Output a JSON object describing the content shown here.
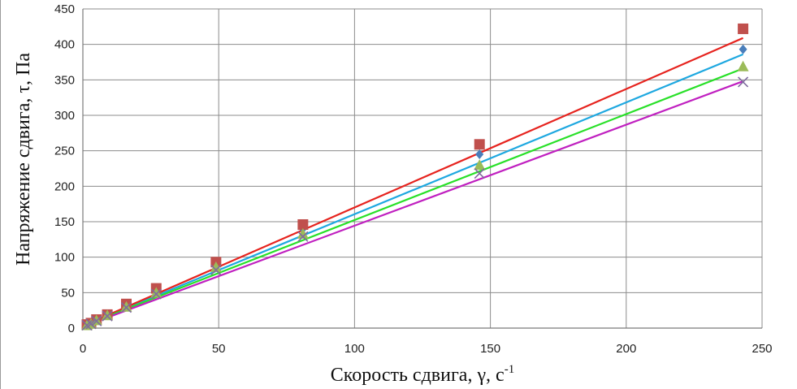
{
  "chart_data": {
    "type": "scatter",
    "xlabel": "Скорость сдвига, γ, с",
    "xlabel_sup": "-1",
    "ylabel": "Напряжение сдвига, τ, Па",
    "xlim": [
      0,
      250
    ],
    "ylim": [
      0,
      450
    ],
    "x_ticks": [
      0,
      50,
      100,
      150,
      200,
      250
    ],
    "y_ticks": [
      0,
      50,
      100,
      150,
      200,
      250,
      300,
      350,
      400,
      450
    ],
    "grid": true,
    "legend": "none",
    "series": [
      {
        "marker": "diamond",
        "marker_color": "#4a7ebb",
        "line_color": "#1ea8e0",
        "x": [
          1.5,
          3,
          5,
          9,
          16,
          27,
          49,
          81,
          146,
          243
        ],
        "y": [
          4,
          7,
          11,
          18,
          31,
          52,
          89,
          140,
          245,
          393
        ],
        "fit": [
          [
            0,
            3
          ],
          [
            243,
            386
          ]
        ]
      },
      {
        "marker": "square",
        "marker_color": "#c0504d",
        "line_color": "#e6231e",
        "x": [
          1.5,
          3,
          5,
          9,
          16,
          27,
          49,
          81,
          146,
          243
        ],
        "y": [
          5,
          7,
          12,
          19,
          34,
          56,
          93,
          146,
          259,
          422
        ],
        "fit": [
          [
            0,
            3
          ],
          [
            243,
            409
          ]
        ]
      },
      {
        "marker": "triangle",
        "marker_color": "#9bbb59",
        "line_color": "#28e028",
        "x": [
          1.5,
          3,
          5,
          9,
          16,
          27,
          49,
          81,
          146,
          243
        ],
        "y": [
          4,
          6,
          11,
          18,
          30,
          50,
          86,
          133,
          230,
          369
        ],
        "fit": [
          [
            0,
            3
          ],
          [
            243,
            366
          ]
        ]
      },
      {
        "marker": "x",
        "marker_color": "#7f6a9e",
        "line_color": "#c020c0",
        "x": [
          1.5,
          3,
          5,
          9,
          16,
          27,
          49,
          81,
          146,
          243
        ],
        "y": [
          4,
          6,
          10,
          17,
          29,
          48,
          82,
          129,
          218,
          347
        ],
        "fit": [
          [
            0,
            2
          ],
          [
            243,
            348
          ]
        ]
      }
    ]
  }
}
